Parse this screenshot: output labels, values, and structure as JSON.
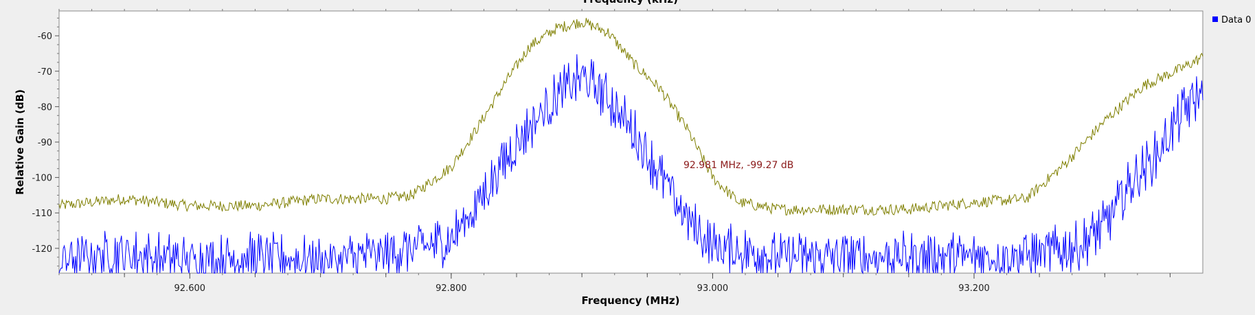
{
  "chart_data": {
    "type": "line",
    "title": "",
    "xlabel": "Frequency (MHz)",
    "top_xlabel": "Frequency (kHz)",
    "ylabel": "Relative Gain (dB)",
    "xlim": [
      92.5,
      93.375
    ],
    "ylim": [
      -127,
      -53
    ],
    "x_ticks": [
      92.6,
      92.8,
      93.0,
      93.2
    ],
    "x_tick_labels": [
      "92.600",
      "92.800",
      "93.000",
      "93.200"
    ],
    "y_ticks": [
      -60,
      -70,
      -80,
      -90,
      -100,
      -110,
      -120
    ],
    "y_tick_labels": [
      "-60",
      "-70",
      "-80",
      "-90",
      "-100",
      "-110",
      "-120"
    ],
    "legend": {
      "position": "top-right",
      "entries": [
        "Data 0"
      ]
    },
    "annotation": {
      "text": "92.981 MHz, -99.27 dB",
      "x": 92.981,
      "y": -99.27,
      "color": "#8b1a1a"
    },
    "grid": false,
    "colors": {
      "max_hold": "#7f7f00",
      "data0": "#0000ff"
    },
    "series": [
      {
        "name": "Data 0",
        "description_points_x": [
          92.5,
          92.55,
          92.6,
          92.65,
          92.7,
          92.75,
          92.78,
          92.8,
          92.82,
          92.84,
          92.86,
          92.88,
          92.9,
          92.92,
          92.94,
          92.96,
          92.98,
          93.0,
          93.05,
          93.1,
          93.15,
          93.2,
          93.25,
          93.28,
          93.3,
          93.32,
          93.34,
          93.36,
          93.375
        ],
        "values": [
          -122,
          -120,
          -122,
          -121,
          -122,
          -120,
          -118,
          -116,
          -106,
          -94,
          -84,
          -76,
          -70,
          -76,
          -86,
          -98,
          -110,
          -118,
          -121,
          -121,
          -121,
          -121,
          -120,
          -118,
          -112,
          -100,
          -92,
          -80,
          -74
        ]
      },
      {
        "name": "",
        "description_points_x": [
          92.5,
          92.55,
          92.6,
          92.65,
          92.7,
          92.75,
          92.77,
          92.8,
          92.82,
          92.84,
          92.86,
          92.88,
          92.9,
          92.92,
          92.94,
          92.96,
          92.98,
          93.0,
          93.02,
          93.05,
          93.1,
          93.15,
          93.2,
          93.24,
          93.27,
          93.3,
          93.33,
          93.36,
          93.375
        ],
        "values": [
          -108,
          -106,
          -108,
          -108,
          -106,
          -106,
          -105,
          -97,
          -86,
          -74,
          -63,
          -58,
          -56,
          -59,
          -68,
          -75,
          -86,
          -100,
          -107,
          -109,
          -109,
          -109,
          -107,
          -106,
          -96,
          -84,
          -74,
          -69,
          -66
        ]
      }
    ]
  }
}
